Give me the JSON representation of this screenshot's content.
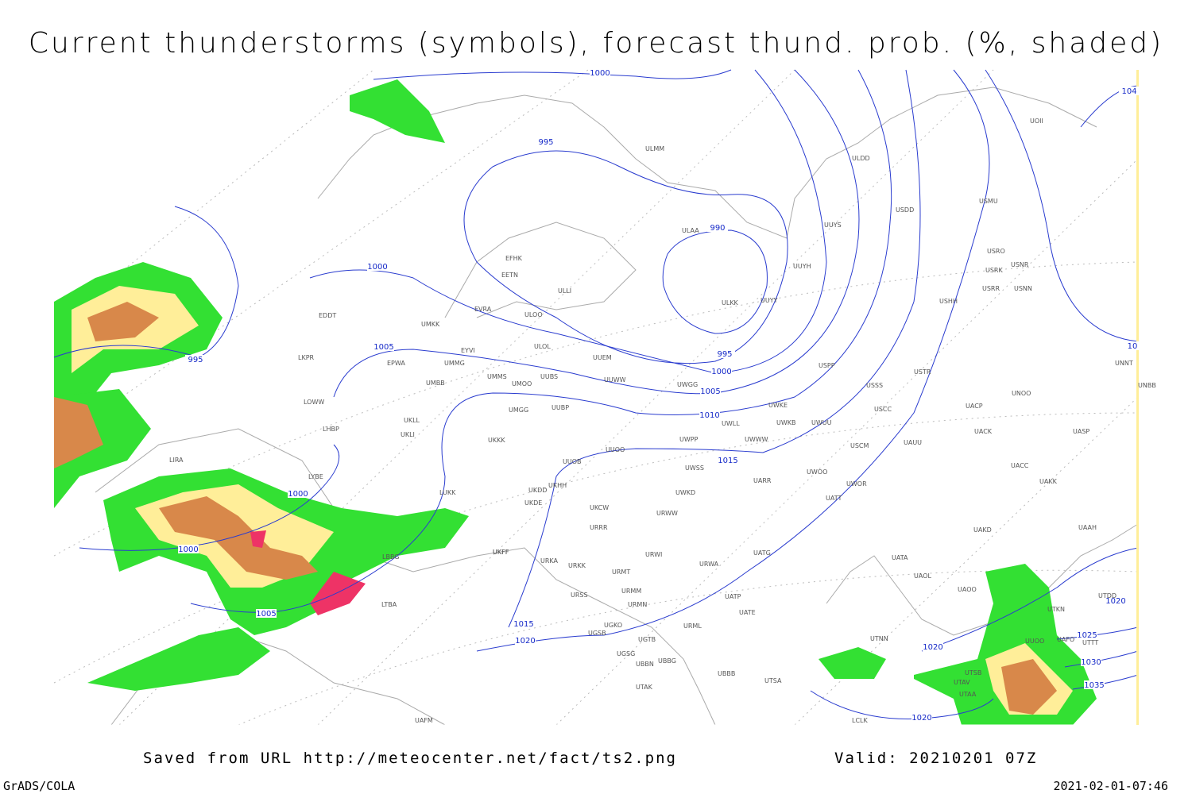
{
  "title": "Current thunderstorms (symbols), forecast thund. prob. (%, shaded)",
  "isobar_labels": [
    "1000",
    "995",
    "990",
    "995",
    "1000",
    "1005",
    "1010",
    "1015",
    "1000",
    "1005",
    "995",
    "1000",
    "1000",
    "1005",
    "1015",
    "1020",
    "1020",
    "1025",
    "1030",
    "1035",
    "1020",
    "1020",
    "104",
    "10"
  ],
  "stations": [
    "ULMM",
    "ULDD",
    "UUYS",
    "USDD",
    "USMU",
    "ULAA",
    "UUYH",
    "USRO",
    "USRK",
    "USNR",
    "USRR",
    "USNN",
    "USHH",
    "ULKK",
    "UUYY",
    "EFHK",
    "EETN",
    "ULLI",
    "EVRA",
    "ULOO",
    "EDDT",
    "UMKK",
    "ULOL",
    "EYVI",
    "UUEM",
    "EPWA",
    "UMMG",
    "UMMS",
    "UMOO",
    "UUBS",
    "UUWW",
    "UWGG",
    "USPP",
    "USTR",
    "USSS",
    "LKPR",
    "UMBB",
    "LOWW",
    "UKLL",
    "UMGG",
    "UUBP",
    "UWKE",
    "UWKB",
    "UWUU",
    "USCC",
    "UACP",
    "UNOO",
    "UNNT",
    "UNBB",
    "LHBP",
    "UKLI",
    "UKKK",
    "UWLL",
    "UWWW",
    "UWPP",
    "USCM",
    "UAUU",
    "UACK",
    "UASP",
    "LIRA",
    "UUOB",
    "UUOO",
    "LYBE",
    "UWSS",
    "UARR",
    "UWOO",
    "UWOR",
    "UACC",
    "UAKK",
    "LUKK",
    "UKHH",
    "UKDD",
    "UKDE",
    "UKFF",
    "UWKD",
    "UKCW",
    "URWW",
    "UATT",
    "URRR",
    "UAKD",
    "UAAH",
    "LBBG",
    "UKFF",
    "URKA",
    "URKK",
    "URWI",
    "UATG",
    "URWA",
    "URMT",
    "UATA",
    "UAOL",
    "UAOO",
    "URSS",
    "URMM",
    "URMN",
    "UATP",
    "UATE",
    "LTBA",
    "UGKO",
    "UGSB",
    "UGTB",
    "URML",
    "UTNN",
    "UGSG",
    "UBBG",
    "UBBB",
    "UBBN",
    "UTAK",
    "UTSA",
    "UTSB",
    "UTAV",
    "UTAA",
    "LCLK",
    "UAFM",
    "UTDD",
    "UTKN",
    "UAFO",
    "UTTT",
    "UUOO",
    "UOII"
  ],
  "footer": {
    "source": "Saved from URL http://meteocenter.net/fact/ts2.png",
    "valid": "Valid: 20210201 07Z",
    "credit": "GrADS/COLA",
    "timestamp": "2021-02-01-07:46"
  }
}
